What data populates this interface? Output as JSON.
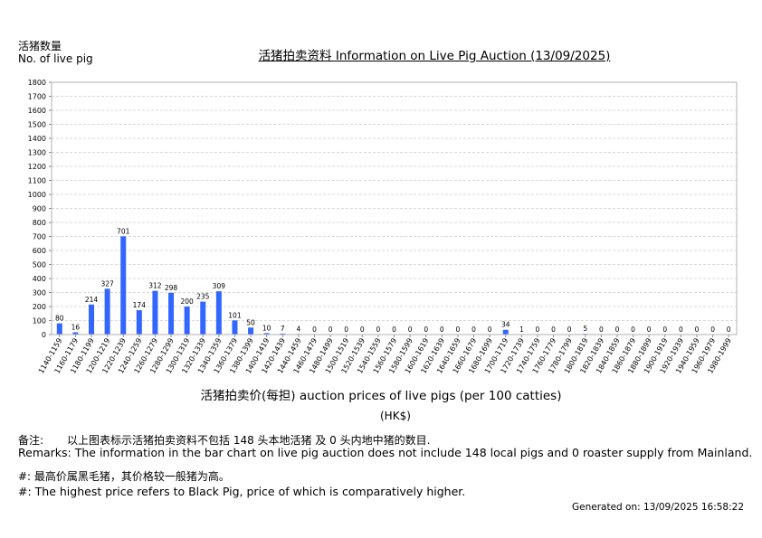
{
  "header": {
    "ylabel_cn": "活猪数量",
    "ylabel_en": "No. of live pig",
    "title": "活猪拍卖资料 Information on Live Pig Auction (13/09/2025)"
  },
  "footer": {
    "xlabel": "活猪拍卖价(每担) auction prices of live pigs (per 100 catties)",
    "unit": "(HK$)",
    "remark_cn_label": "备注:",
    "remark_cn_text": "以上图表标示活猪拍卖资料不包括 148 头本地活猪 及 0 头内地中猪的数目.",
    "remark_en": "Remarks: The information in the bar chart on live pig auction does not include 148 local pigs and 0 roaster supply from Mainland.",
    "note_cn": "#: 最高价属黑毛猪，其价格较一般猪为高。",
    "note_en": "#: The highest price refers to Black Pig, price of which is comparatively higher.",
    "generated": "Generated on: 13/09/2025 16:58:22"
  },
  "chart_data": {
    "type": "bar",
    "categories": [
      "1140-1159",
      "1160-1179",
      "1180-1199",
      "1200-1219",
      "1220-1239",
      "1240-1259",
      "1260-1279",
      "1280-1299",
      "1300-1319",
      "1320-1339",
      "1340-1359",
      "1360-1379",
      "1380-1399",
      "1400-1419",
      "1420-1439",
      "1440-1459",
      "1460-1479",
      "1480-1499",
      "1500-1519",
      "1520-1539",
      "1540-1559",
      "1560-1579",
      "1580-1599",
      "1600-1619",
      "1620-1639",
      "1640-1659",
      "1660-1679",
      "1680-1699",
      "1700-1719",
      "1720-1739",
      "1740-1759",
      "1760-1779",
      "1780-1799",
      "1800-1819",
      "1820-1839",
      "1840-1859",
      "1860-1879",
      "1880-1899",
      "1900-1919",
      "1920-1939",
      "1940-1959",
      "1960-1979",
      "1980-1999"
    ],
    "values": [
      80,
      16,
      214,
      327,
      701,
      174,
      312,
      298,
      200,
      235,
      309,
      101,
      50,
      10,
      7,
      4,
      0,
      0,
      0,
      0,
      0,
      0,
      0,
      0,
      0,
      0,
      0,
      0,
      34,
      1,
      0,
      0,
      0,
      5,
      0,
      0,
      0,
      0,
      0,
      0,
      0,
      0,
      0
    ],
    "ylim": [
      0,
      1800
    ],
    "ytick_step": 100,
    "grid": true,
    "bar_color": "#3366ff"
  }
}
